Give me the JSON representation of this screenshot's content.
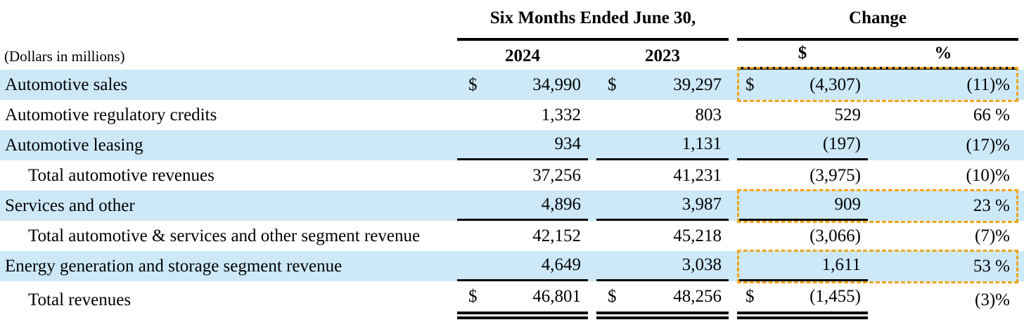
{
  "table_title_context": "Revenue summary table",
  "units_note": "(Dollars in millions)",
  "header": {
    "period_group": "Six Months Ended June 30,",
    "change_group": "Change",
    "col_2024": "2024",
    "col_2023": "2023",
    "col_change_dollar": "$",
    "col_change_pct": "%"
  },
  "rows": [
    {
      "label": "Automotive sales",
      "cur1": "$",
      "v2024": "34,990",
      "cur2": "$",
      "v2023": "39,297",
      "cur3": "$",
      "chg": "(4,307)",
      "pct": "(11)%"
    },
    {
      "label": "Automotive regulatory credits",
      "cur1": "",
      "v2024": "1,332",
      "cur2": "",
      "v2023": "803",
      "cur3": "",
      "chg": "529",
      "pct": "66 %"
    },
    {
      "label": "Automotive leasing",
      "cur1": "",
      "v2024": "934",
      "cur2": "",
      "v2023": "1,131",
      "cur3": "",
      "chg": "(197)",
      "pct": "(17)%"
    },
    {
      "label": "Total automotive revenues",
      "cur1": "",
      "v2024": "37,256",
      "cur2": "",
      "v2023": "41,231",
      "cur3": "",
      "chg": "(3,975)",
      "pct": "(10)%"
    },
    {
      "label": "Services and other",
      "cur1": "",
      "v2024": "4,896",
      "cur2": "",
      "v2023": "3,987",
      "cur3": "",
      "chg": "909",
      "pct": "23 %"
    },
    {
      "label": "Total automotive & services and other segment revenue",
      "cur1": "",
      "v2024": "42,152",
      "cur2": "",
      "v2023": "45,218",
      "cur3": "",
      "chg": "(3,066)",
      "pct": "(7)%"
    },
    {
      "label": "Energy generation and storage segment revenue",
      "cur1": "",
      "v2024": "4,649",
      "cur2": "",
      "v2023": "3,038",
      "cur3": "",
      "chg": "1,611",
      "pct": "53 %"
    },
    {
      "label": "Total revenues",
      "cur1": "$",
      "v2024": "46,801",
      "cur2": "$",
      "v2023": "48,256",
      "cur3": "$",
      "chg": "(1,455)",
      "pct": "(3)%"
    }
  ],
  "colors": {
    "row_highlight_blue": "#cde9f8",
    "callout_dashed_amber": "#eea51f",
    "rule_black": "#000000"
  }
}
